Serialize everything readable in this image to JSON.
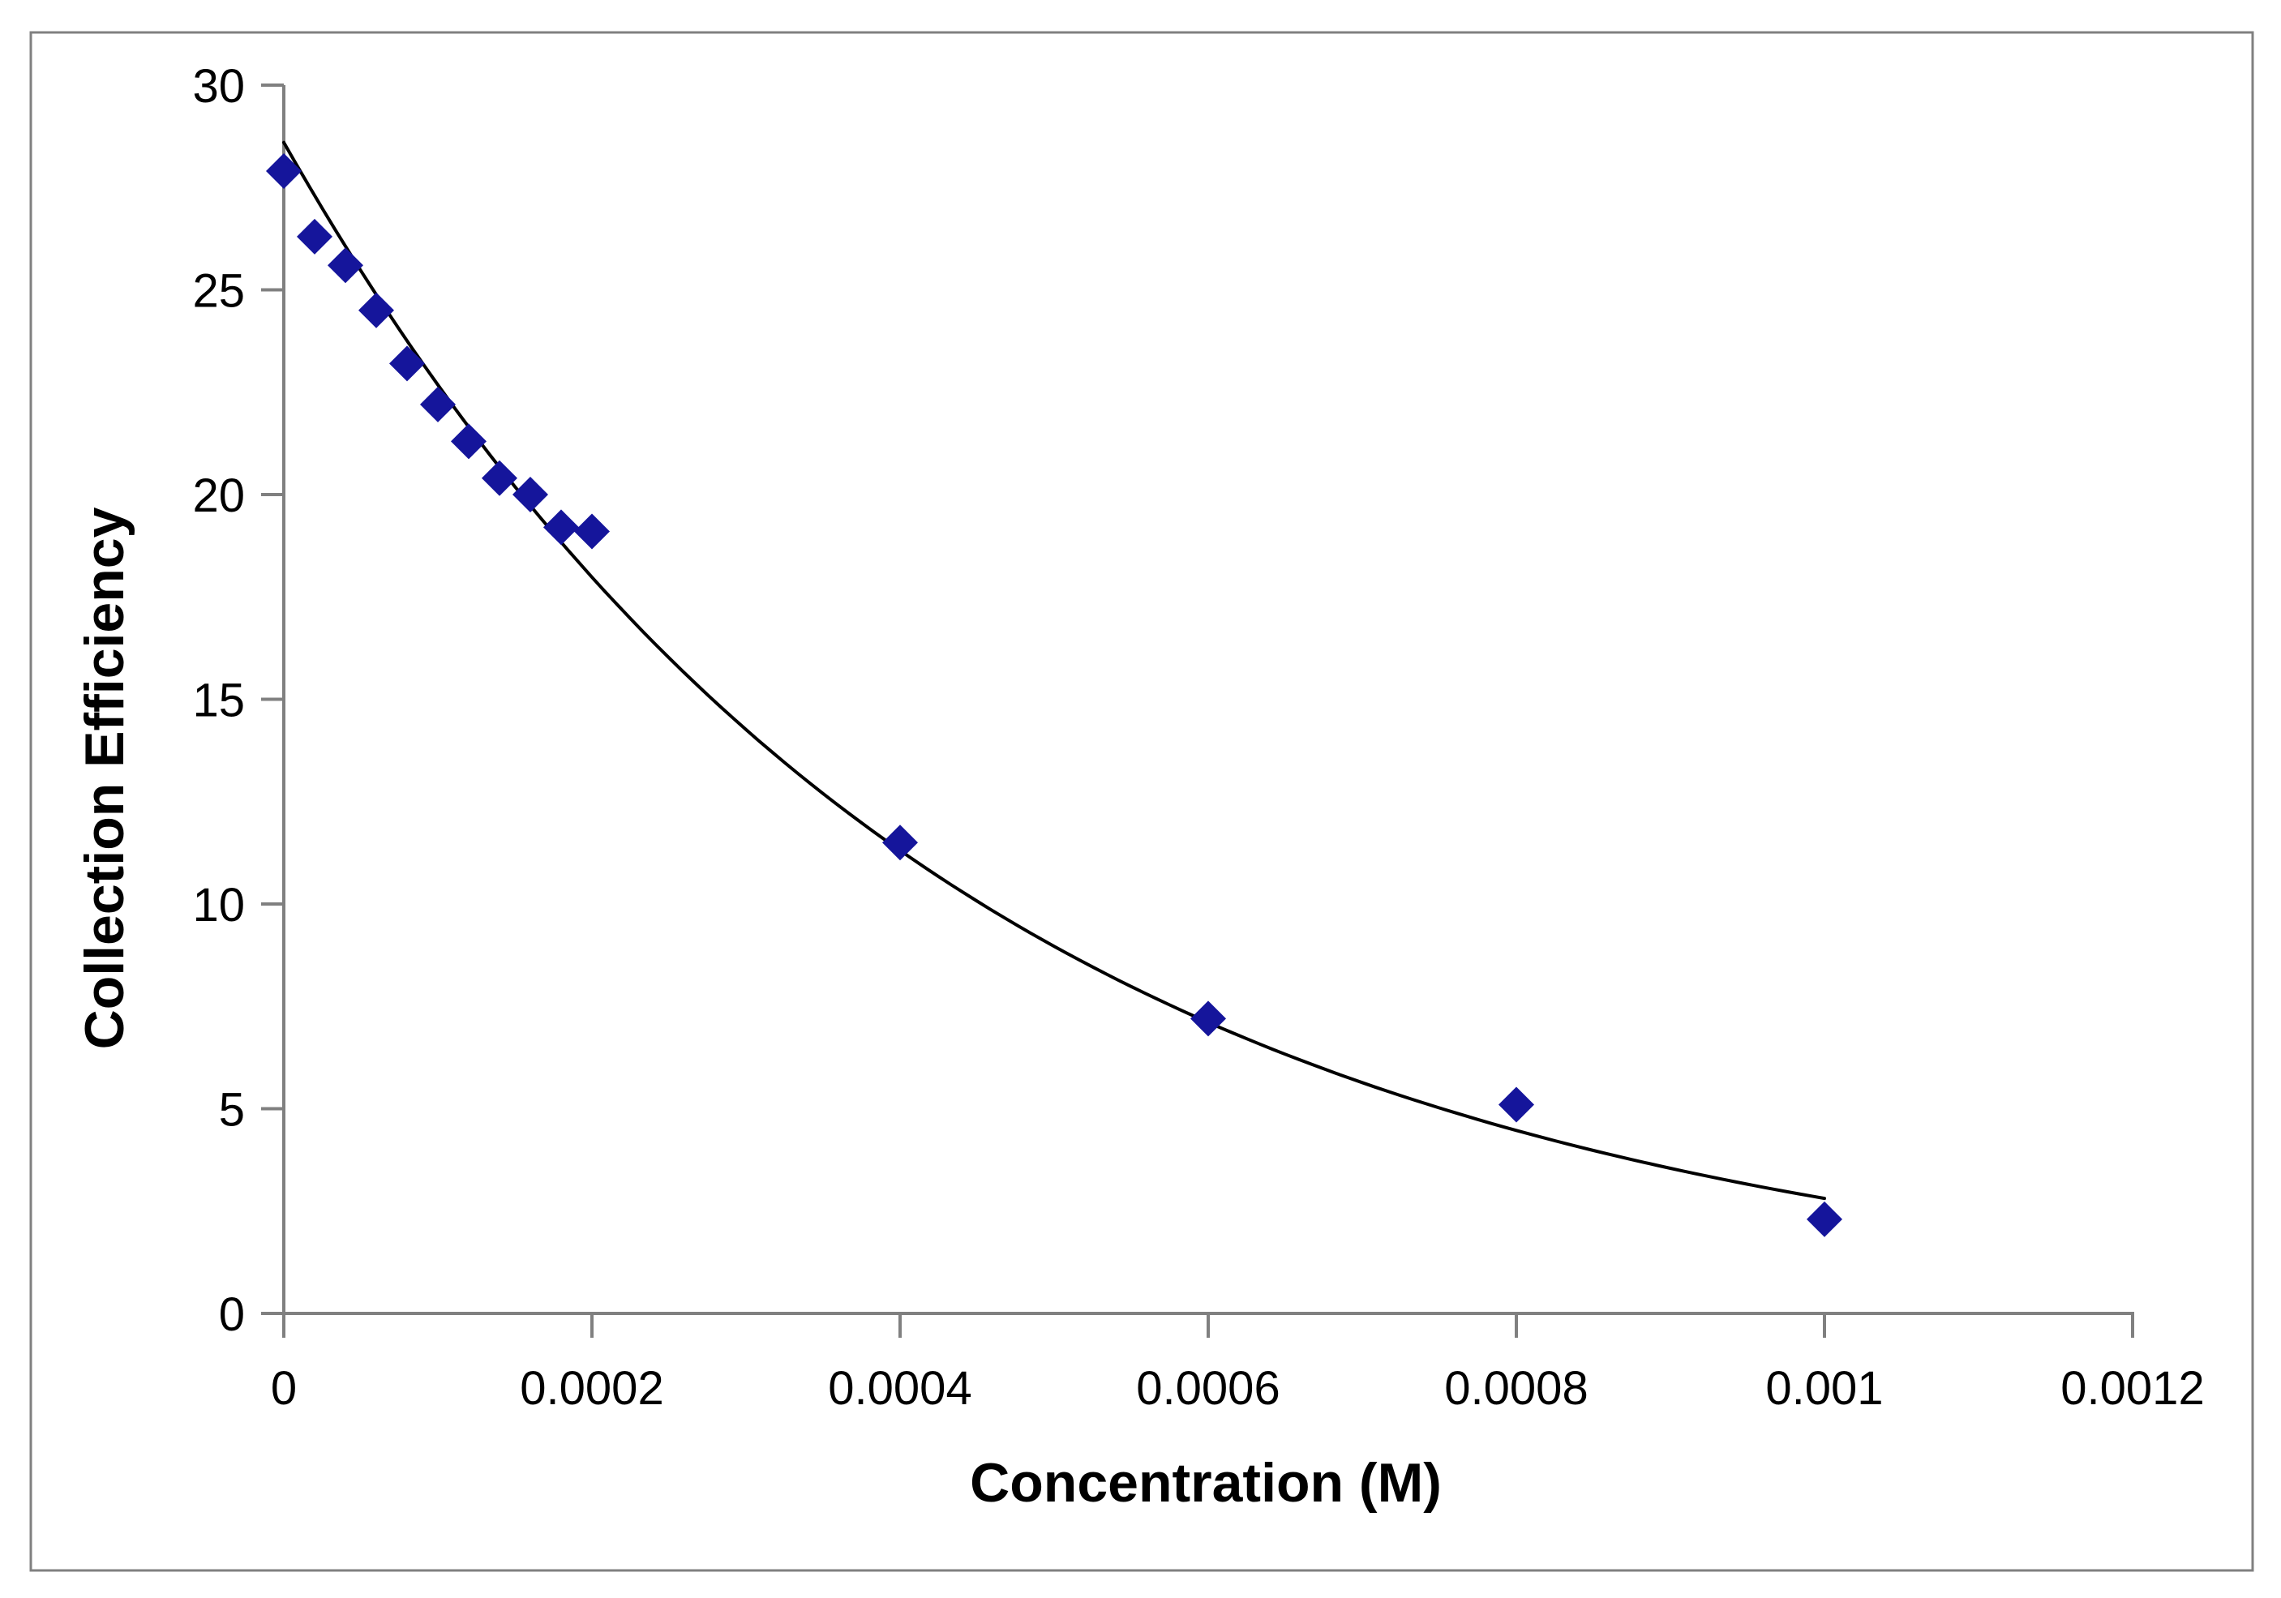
{
  "chart_data": {
    "type": "scatter",
    "title": "",
    "xlabel": "Concentration (M)",
    "ylabel": "Collection Efficiency",
    "xlim": [
      0,
      0.0012
    ],
    "ylim": [
      0,
      30
    ],
    "grid": false,
    "legend": "none",
    "x_ticks": [
      0,
      0.0002,
      0.0004,
      0.0006,
      0.0008,
      0.001,
      0.0012
    ],
    "x_tick_labels": [
      "0",
      "0.0002",
      "0.0004",
      "0.0006",
      "0.0008",
      "0.001",
      "0.0012"
    ],
    "y_ticks": [
      0,
      5,
      10,
      15,
      20,
      25,
      30
    ],
    "y_tick_labels": [
      "0",
      "5",
      "10",
      "15",
      "20",
      "25",
      "30"
    ],
    "series": [
      {
        "name": "Collection Efficiency",
        "marker": "diamond",
        "marker_color": "#15159B",
        "points": [
          {
            "x": 0,
            "y": 27.9
          },
          {
            "x": 2e-05,
            "y": 26.3
          },
          {
            "x": 4e-05,
            "y": 25.6
          },
          {
            "x": 6e-05,
            "y": 24.5
          },
          {
            "x": 8e-05,
            "y": 23.2
          },
          {
            "x": 0.0001,
            "y": 22.2
          },
          {
            "x": 0.00012,
            "y": 21.3
          },
          {
            "x": 0.00014,
            "y": 20.4
          },
          {
            "x": 0.00016,
            "y": 20.0
          },
          {
            "x": 0.00018,
            "y": 19.2
          },
          {
            "x": 0.0002,
            "y": 19.1
          },
          {
            "x": 0.0004,
            "y": 11.5
          },
          {
            "x": 0.0006,
            "y": 7.2
          },
          {
            "x": 0.0008,
            "y": 5.1
          },
          {
            "x": 0.001,
            "y": 2.3
          }
        ]
      }
    ],
    "trendline": {
      "type": "exponential",
      "a": 28.6,
      "b": -2320,
      "x_start": 0,
      "x_end": 0.001,
      "color": "#000000"
    },
    "axis_color": "#808080",
    "border_color": "#808080",
    "text_color": "#000000"
  }
}
